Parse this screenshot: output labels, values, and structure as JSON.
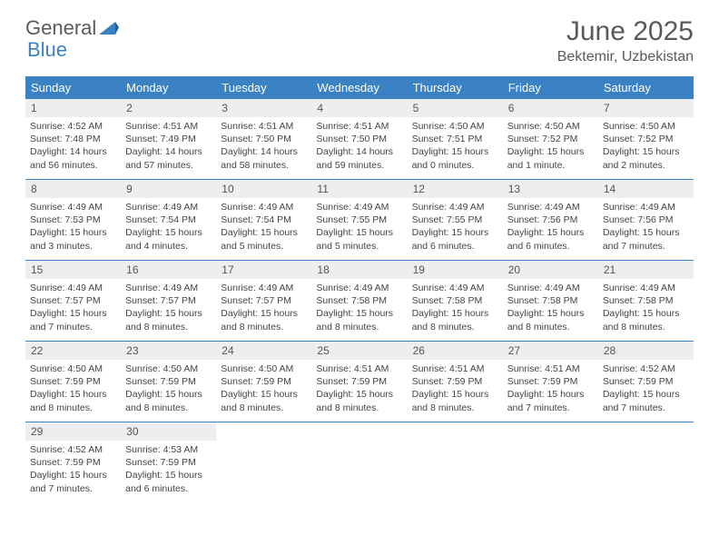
{
  "brand": {
    "part1": "General",
    "part2": "Blue"
  },
  "title": "June 2025",
  "location": "Bektemir, Uzbekistan",
  "colors": {
    "header_bg": "#3b82c4",
    "header_text": "#ffffff",
    "daynum_bg": "#eceeef",
    "text": "#444444",
    "divider": "#3b82c4",
    "background": "#ffffff"
  },
  "day_headers": [
    "Sunday",
    "Monday",
    "Tuesday",
    "Wednesday",
    "Thursday",
    "Friday",
    "Saturday"
  ],
  "weeks": [
    [
      {
        "n": "1",
        "sr": "Sunrise: 4:52 AM",
        "ss": "Sunset: 7:48 PM",
        "dl": "Daylight: 14 hours and 56 minutes."
      },
      {
        "n": "2",
        "sr": "Sunrise: 4:51 AM",
        "ss": "Sunset: 7:49 PM",
        "dl": "Daylight: 14 hours and 57 minutes."
      },
      {
        "n": "3",
        "sr": "Sunrise: 4:51 AM",
        "ss": "Sunset: 7:50 PM",
        "dl": "Daylight: 14 hours and 58 minutes."
      },
      {
        "n": "4",
        "sr": "Sunrise: 4:51 AM",
        "ss": "Sunset: 7:50 PM",
        "dl": "Daylight: 14 hours and 59 minutes."
      },
      {
        "n": "5",
        "sr": "Sunrise: 4:50 AM",
        "ss": "Sunset: 7:51 PM",
        "dl": "Daylight: 15 hours and 0 minutes."
      },
      {
        "n": "6",
        "sr": "Sunrise: 4:50 AM",
        "ss": "Sunset: 7:52 PM",
        "dl": "Daylight: 15 hours and 1 minute."
      },
      {
        "n": "7",
        "sr": "Sunrise: 4:50 AM",
        "ss": "Sunset: 7:52 PM",
        "dl": "Daylight: 15 hours and 2 minutes."
      }
    ],
    [
      {
        "n": "8",
        "sr": "Sunrise: 4:49 AM",
        "ss": "Sunset: 7:53 PM",
        "dl": "Daylight: 15 hours and 3 minutes."
      },
      {
        "n": "9",
        "sr": "Sunrise: 4:49 AM",
        "ss": "Sunset: 7:54 PM",
        "dl": "Daylight: 15 hours and 4 minutes."
      },
      {
        "n": "10",
        "sr": "Sunrise: 4:49 AM",
        "ss": "Sunset: 7:54 PM",
        "dl": "Daylight: 15 hours and 5 minutes."
      },
      {
        "n": "11",
        "sr": "Sunrise: 4:49 AM",
        "ss": "Sunset: 7:55 PM",
        "dl": "Daylight: 15 hours and 5 minutes."
      },
      {
        "n": "12",
        "sr": "Sunrise: 4:49 AM",
        "ss": "Sunset: 7:55 PM",
        "dl": "Daylight: 15 hours and 6 minutes."
      },
      {
        "n": "13",
        "sr": "Sunrise: 4:49 AM",
        "ss": "Sunset: 7:56 PM",
        "dl": "Daylight: 15 hours and 6 minutes."
      },
      {
        "n": "14",
        "sr": "Sunrise: 4:49 AM",
        "ss": "Sunset: 7:56 PM",
        "dl": "Daylight: 15 hours and 7 minutes."
      }
    ],
    [
      {
        "n": "15",
        "sr": "Sunrise: 4:49 AM",
        "ss": "Sunset: 7:57 PM",
        "dl": "Daylight: 15 hours and 7 minutes."
      },
      {
        "n": "16",
        "sr": "Sunrise: 4:49 AM",
        "ss": "Sunset: 7:57 PM",
        "dl": "Daylight: 15 hours and 8 minutes."
      },
      {
        "n": "17",
        "sr": "Sunrise: 4:49 AM",
        "ss": "Sunset: 7:57 PM",
        "dl": "Daylight: 15 hours and 8 minutes."
      },
      {
        "n": "18",
        "sr": "Sunrise: 4:49 AM",
        "ss": "Sunset: 7:58 PM",
        "dl": "Daylight: 15 hours and 8 minutes."
      },
      {
        "n": "19",
        "sr": "Sunrise: 4:49 AM",
        "ss": "Sunset: 7:58 PM",
        "dl": "Daylight: 15 hours and 8 minutes."
      },
      {
        "n": "20",
        "sr": "Sunrise: 4:49 AM",
        "ss": "Sunset: 7:58 PM",
        "dl": "Daylight: 15 hours and 8 minutes."
      },
      {
        "n": "21",
        "sr": "Sunrise: 4:49 AM",
        "ss": "Sunset: 7:58 PM",
        "dl": "Daylight: 15 hours and 8 minutes."
      }
    ],
    [
      {
        "n": "22",
        "sr": "Sunrise: 4:50 AM",
        "ss": "Sunset: 7:59 PM",
        "dl": "Daylight: 15 hours and 8 minutes."
      },
      {
        "n": "23",
        "sr": "Sunrise: 4:50 AM",
        "ss": "Sunset: 7:59 PM",
        "dl": "Daylight: 15 hours and 8 minutes."
      },
      {
        "n": "24",
        "sr": "Sunrise: 4:50 AM",
        "ss": "Sunset: 7:59 PM",
        "dl": "Daylight: 15 hours and 8 minutes."
      },
      {
        "n": "25",
        "sr": "Sunrise: 4:51 AM",
        "ss": "Sunset: 7:59 PM",
        "dl": "Daylight: 15 hours and 8 minutes."
      },
      {
        "n": "26",
        "sr": "Sunrise: 4:51 AM",
        "ss": "Sunset: 7:59 PM",
        "dl": "Daylight: 15 hours and 8 minutes."
      },
      {
        "n": "27",
        "sr": "Sunrise: 4:51 AM",
        "ss": "Sunset: 7:59 PM",
        "dl": "Daylight: 15 hours and 7 minutes."
      },
      {
        "n": "28",
        "sr": "Sunrise: 4:52 AM",
        "ss": "Sunset: 7:59 PM",
        "dl": "Daylight: 15 hours and 7 minutes."
      }
    ],
    [
      {
        "n": "29",
        "sr": "Sunrise: 4:52 AM",
        "ss": "Sunset: 7:59 PM",
        "dl": "Daylight: 15 hours and 7 minutes."
      },
      {
        "n": "30",
        "sr": "Sunrise: 4:53 AM",
        "ss": "Sunset: 7:59 PM",
        "dl": "Daylight: 15 hours and 6 minutes."
      },
      {
        "empty": true
      },
      {
        "empty": true
      },
      {
        "empty": true
      },
      {
        "empty": true
      },
      {
        "empty": true
      }
    ]
  ]
}
